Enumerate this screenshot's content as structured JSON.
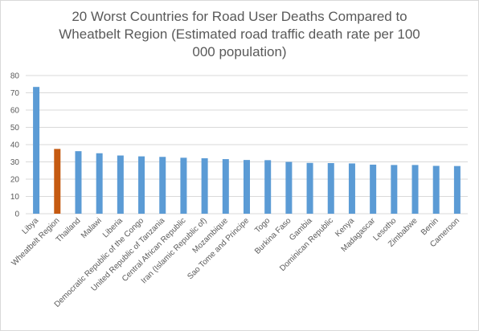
{
  "chart_data": {
    "type": "bar",
    "title": "20 Worst Countries for Road User Deaths Compared to Wheatbelt Region (Estimated road traffic death rate per 100 000 population)",
    "title_lines": [
      "20 Worst Countries for Road User Deaths Compared to",
      "Wheatbelt Region (Estimated road traffic death rate per 100",
      "000 population)"
    ],
    "xlabel": "",
    "ylabel": "",
    "ylim": [
      0,
      80
    ],
    "yticks": [
      0,
      10,
      20,
      30,
      40,
      50,
      60,
      70,
      80
    ],
    "grid": true,
    "legend": "none",
    "colors": {
      "default": "#5b9bd5",
      "highlight": "#c55a11",
      "grid": "#d9d9d9",
      "text": "#595959"
    },
    "highlight_category": "Wheatbelt Region",
    "categories": [
      "Libya",
      "Wheatbelt Region",
      "Thailand",
      "Malawi",
      "Liberia",
      "Democratic Republic of the Congo",
      "United Republic of Tanzania",
      "Central African Republic",
      "Iran (Islamic Republic of)",
      "Mozambique",
      "Sao Tome and Principe",
      "Togo",
      "Burkina Faso",
      "Gambia",
      "Dominican Republic",
      "Kenya",
      "Madagascar",
      "Lesotho",
      "Zimbabwe",
      "Benin",
      "Cameroon"
    ],
    "values": [
      73.4,
      37.5,
      36.2,
      35.0,
      33.7,
      33.2,
      32.9,
      32.4,
      32.1,
      31.6,
      31.1,
      31.0,
      30.0,
      29.4,
      29.3,
      29.1,
      28.4,
      28.2,
      28.2,
      27.7,
      27.6
    ]
  }
}
